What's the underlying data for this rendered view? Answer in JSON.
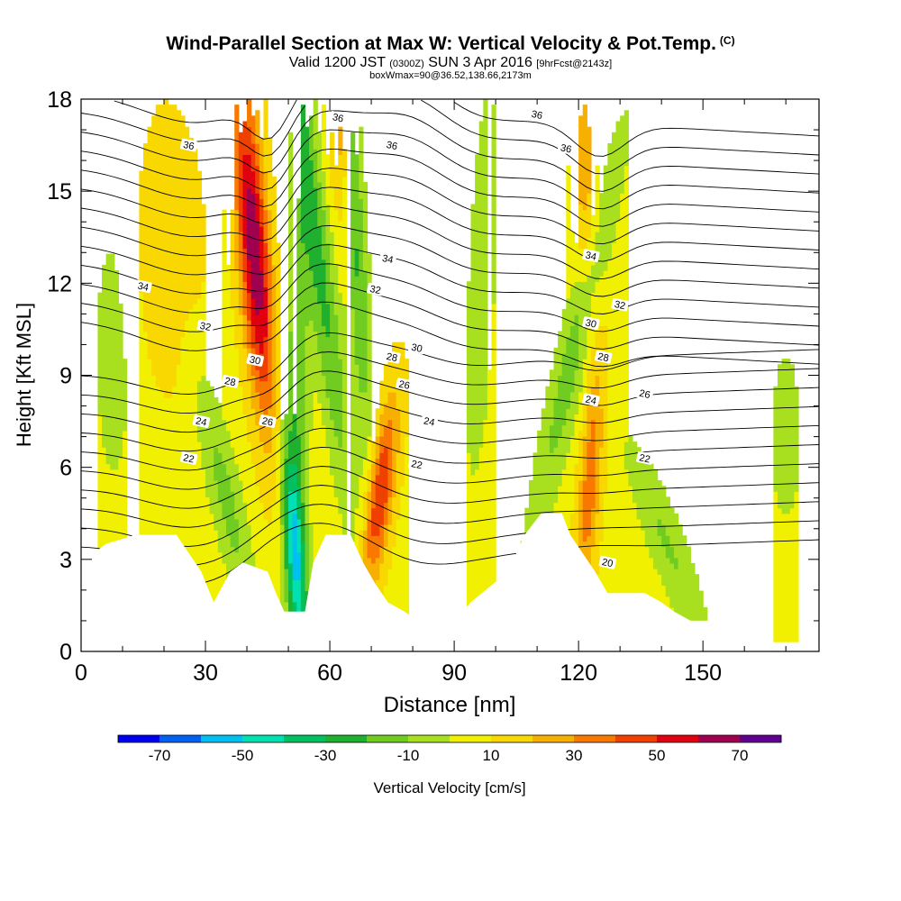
{
  "title": {
    "main": "Wind-Parallel Section at Max W: Vertical Velocity & Pot.Temp.",
    "copyright": "(C)",
    "line2_prefix": "Valid 1200 JST",
    "line2_utc": "(0300Z)",
    "line2_date": "SUN 3 Apr 2016",
    "line2_fcst": "[9hrFcst@2143z]",
    "line3": "boxWmax=90@36.52,138.66,2173m"
  },
  "chart_data": {
    "type": "heatmap",
    "xlabel": "Distance [nm]",
    "ylabel": "Height [Kft MSL]",
    "xlim": [
      0,
      178
    ],
    "ylim": [
      0,
      18
    ],
    "x_ticks": [
      0,
      30,
      60,
      90,
      120,
      150
    ],
    "y_ticks": [
      0,
      3,
      6,
      9,
      12,
      15,
      18
    ],
    "colorbar": {
      "label": "Vertical Velocity [cm/s]",
      "tick_values": [
        -70,
        -50,
        -30,
        -10,
        10,
        30,
        50,
        70
      ],
      "tick_labels": [
        "-70",
        "-50",
        "-30",
        "-10",
        "10",
        "30",
        "50",
        "70"
      ],
      "bins": [
        -80,
        -70,
        -60,
        -50,
        -40,
        -30,
        -20,
        -10,
        0,
        10,
        20,
        30,
        40,
        50,
        60,
        70,
        80
      ],
      "colors": [
        "#0000f0",
        "#0060f0",
        "#00c0f0",
        "#00e0b0",
        "#00c060",
        "#20b030",
        "#70cc20",
        "#a8e020",
        "#f0f000",
        "#f8d800",
        "#f8b000",
        "#f87800",
        "#f04000",
        "#e00010",
        "#a00050",
        "#600090"
      ]
    },
    "updrafts": [
      {
        "center_x": 44,
        "max_cm_s": 70
      },
      {
        "center_x": 72,
        "max_cm_s": 50
      },
      {
        "center_x": 124,
        "max_cm_s": 40
      }
    ],
    "downdrafts": [
      {
        "center_x": 46,
        "min_cm_s": -50
      },
      {
        "center_x": 57,
        "min_cm_s": -30
      },
      {
        "center_x": 67,
        "min_cm_s": -30
      },
      {
        "center_x": 116,
        "min_cm_s": -20
      }
    ],
    "theta_contour_labels": [
      {
        "x": 26,
        "y": 16.5,
        "text": "36"
      },
      {
        "x": 62,
        "y": 17.4,
        "text": "36"
      },
      {
        "x": 75,
        "y": 16.5,
        "text": "36"
      },
      {
        "x": 110,
        "y": 17.5,
        "text": "36"
      },
      {
        "x": 117,
        "y": 16.4,
        "text": "36"
      },
      {
        "x": 15,
        "y": 11.9,
        "text": "34"
      },
      {
        "x": 74,
        "y": 12.8,
        "text": "34"
      },
      {
        "x": 123,
        "y": 12.9,
        "text": "34"
      },
      {
        "x": 30,
        "y": 10.6,
        "text": "32"
      },
      {
        "x": 71,
        "y": 11.8,
        "text": "32"
      },
      {
        "x": 130,
        "y": 11.3,
        "text": "32"
      },
      {
        "x": 42,
        "y": 9.5,
        "text": "30"
      },
      {
        "x": 81,
        "y": 9.9,
        "text": "30"
      },
      {
        "x": 123,
        "y": 10.7,
        "text": "30"
      },
      {
        "x": 36,
        "y": 8.8,
        "text": "28"
      },
      {
        "x": 75,
        "y": 9.6,
        "text": "28"
      },
      {
        "x": 126,
        "y": 9.6,
        "text": "28"
      },
      {
        "x": 45,
        "y": 7.5,
        "text": "26"
      },
      {
        "x": 78,
        "y": 8.7,
        "text": "26"
      },
      {
        "x": 136,
        "y": 8.4,
        "text": "26"
      },
      {
        "x": 29,
        "y": 7.5,
        "text": "24"
      },
      {
        "x": 84,
        "y": 7.5,
        "text": "24"
      },
      {
        "x": 123,
        "y": 8.2,
        "text": "24"
      },
      {
        "x": 26,
        "y": 6.3,
        "text": "22"
      },
      {
        "x": 81,
        "y": 6.1,
        "text": "22"
      },
      {
        "x": 136,
        "y": 6.3,
        "text": "22"
      },
      {
        "x": 127,
        "y": 2.9,
        "text": "20"
      }
    ],
    "terrain_kft": [
      [
        0,
        2.9
      ],
      [
        3,
        3.2
      ],
      [
        6,
        3.5
      ],
      [
        13,
        3.8
      ],
      [
        23,
        3.8
      ],
      [
        26,
        3.2
      ],
      [
        29,
        2.6
      ],
      [
        32,
        1.6
      ],
      [
        36,
        2.6
      ],
      [
        39,
        2.9
      ],
      [
        45,
        2.6
      ],
      [
        47,
        1.9
      ],
      [
        49,
        1.3
      ],
      [
        54,
        1.3
      ],
      [
        56,
        2.9
      ],
      [
        59,
        3.8
      ],
      [
        65,
        3.8
      ],
      [
        68,
        2.9
      ],
      [
        71,
        2.2
      ],
      [
        74,
        1.6
      ],
      [
        78,
        1.3
      ],
      [
        81,
        1.0
      ],
      [
        90,
        1.0
      ],
      [
        94,
        1.6
      ],
      [
        103,
        2.6
      ],
      [
        107,
        3.8
      ],
      [
        111,
        4.5
      ],
      [
        116,
        4.5
      ],
      [
        118,
        3.8
      ],
      [
        121,
        3.2
      ],
      [
        124,
        2.6
      ],
      [
        127,
        1.9
      ],
      [
        136,
        1.9
      ],
      [
        140,
        1.6
      ],
      [
        143,
        1.3
      ],
      [
        147,
        1.0
      ],
      [
        153,
        1.0
      ],
      [
        159,
        0.6
      ],
      [
        164,
        0.3
      ],
      [
        178,
        0.3
      ]
    ]
  }
}
